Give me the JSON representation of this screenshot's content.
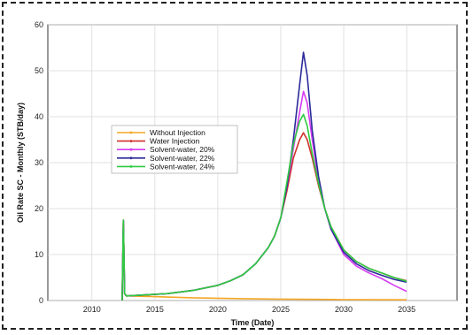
{
  "chart_data": {
    "type": "line",
    "title": "",
    "xlabel": "Time (Date)",
    "ylabel": "Oil Rate SC - Monthly (STB/day)",
    "xlim": [
      2006.5,
      2039
    ],
    "ylim": [
      0,
      60
    ],
    "xticks": [
      2010,
      2015,
      2020,
      2025,
      2030,
      2035
    ],
    "yticks": [
      0,
      10,
      20,
      30,
      40,
      50,
      60
    ],
    "grid": true,
    "legend_position": "left",
    "series": [
      {
        "name": "Without Injection",
        "color": "#f5a623",
        "x": [
          2012.4,
          2012.5,
          2012.6,
          2012.75,
          2013,
          2014,
          2015,
          2016,
          2018,
          2020,
          2022,
          2025,
          2028,
          2030,
          2032,
          2035
        ],
        "y": [
          0,
          17.5,
          1.5,
          1.0,
          1.0,
          0.9,
          0.85,
          0.75,
          0.6,
          0.5,
          0.4,
          0.3,
          0.25,
          0.2,
          0.18,
          0.15
        ]
      },
      {
        "name": "Water Injection",
        "color": "#d0312d",
        "x": [
          2012.4,
          2012.5,
          2012.6,
          2012.75,
          2014,
          2016,
          2018,
          2020,
          2021,
          2022,
          2023,
          2024,
          2024.5,
          2025,
          2025.5,
          2026,
          2026.5,
          2026.8,
          2027.1,
          2027.5,
          2028,
          2028.5,
          2029,
          2030,
          2031,
          2032,
          2033,
          2034,
          2035
        ],
        "y": [
          0,
          17.5,
          1.5,
          1.0,
          1.2,
          1.5,
          2.2,
          3.3,
          4.3,
          5.6,
          8,
          11.5,
          14,
          18,
          24,
          31,
          35,
          36.5,
          35,
          31,
          25,
          20,
          16,
          11,
          8.5,
          7,
          6,
          5,
          4.3
        ]
      },
      {
        "name": "Solvent-water, 20%",
        "color": "#d63cf0",
        "x": [
          2012.4,
          2012.5,
          2012.6,
          2012.75,
          2014,
          2016,
          2018,
          2020,
          2021,
          2022,
          2023,
          2024,
          2024.5,
          2025,
          2025.5,
          2026,
          2026.5,
          2026.8,
          2027.1,
          2027.5,
          2028,
          2028.5,
          2029,
          2030,
          2031,
          2032,
          2033,
          2034,
          2035
        ],
        "y": [
          0,
          17.5,
          1.5,
          1.0,
          1.2,
          1.5,
          2.2,
          3.3,
          4.3,
          5.6,
          8,
          11.5,
          14,
          18,
          25,
          33,
          41,
          45.5,
          43,
          35,
          26,
          20,
          15.5,
          10,
          7.5,
          6,
          4.8,
          3.3,
          2.0
        ]
      },
      {
        "name": "Solvent-water, 22%",
        "color": "#2b2a9b",
        "x": [
          2012.4,
          2012.5,
          2012.6,
          2012.75,
          2014,
          2016,
          2018,
          2020,
          2021,
          2022,
          2023,
          2024,
          2024.5,
          2025,
          2025.5,
          2026,
          2026.5,
          2026.8,
          2027.1,
          2027.5,
          2028,
          2028.5,
          2029,
          2030,
          2031,
          2032,
          2033,
          2034,
          2035
        ],
        "y": [
          0,
          17.5,
          1.5,
          1.0,
          1.2,
          1.5,
          2.2,
          3.3,
          4.3,
          5.6,
          8,
          11.5,
          14,
          18,
          25,
          35,
          47,
          54,
          49,
          37,
          27,
          20,
          15.5,
          10.5,
          8,
          6.5,
          5.5,
          4.6,
          4.0
        ]
      },
      {
        "name": "Solvent-water, 24%",
        "color": "#2ecc40",
        "x": [
          2012.4,
          2012.5,
          2012.6,
          2012.75,
          2014,
          2016,
          2018,
          2020,
          2021,
          2022,
          2023,
          2024,
          2024.5,
          2025,
          2025.5,
          2026,
          2026.5,
          2026.8,
          2027.1,
          2027.5,
          2028,
          2028.5,
          2029,
          2030,
          2031,
          2032,
          2033,
          2034,
          2035
        ],
        "y": [
          0,
          17.5,
          1.5,
          1.0,
          1.2,
          1.5,
          2.2,
          3.3,
          4.3,
          5.6,
          8,
          11.5,
          14,
          18,
          26,
          34,
          39,
          40.5,
          38,
          32,
          25.5,
          20,
          16,
          11,
          8.5,
          7,
          6,
          5,
          4.2
        ]
      }
    ]
  }
}
